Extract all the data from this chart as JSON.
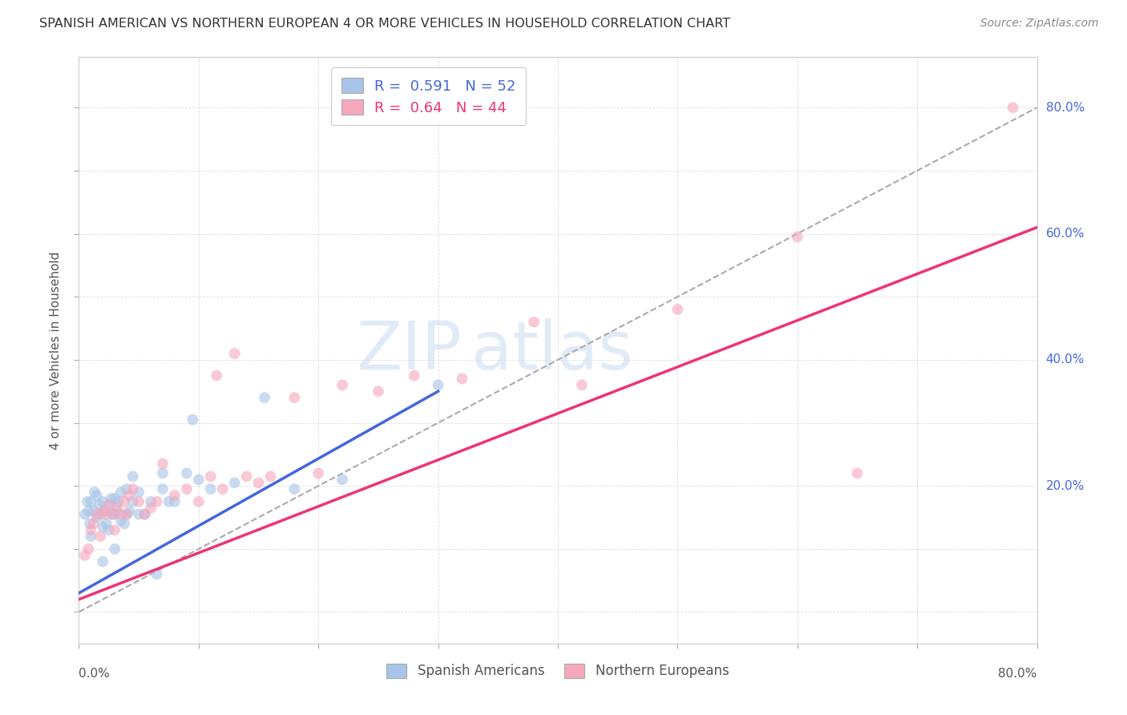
{
  "title": "SPANISH AMERICAN VS NORTHERN EUROPEAN 4 OR MORE VEHICLES IN HOUSEHOLD CORRELATION CHART",
  "source": "Source: ZipAtlas.com",
  "ylabel": "4 or more Vehicles in Household",
  "blue_color": "#a8c4e8",
  "pink_color": "#f5a8bc",
  "blue_line_color": "#4466dd",
  "pink_line_color": "#ee3377",
  "dash_color": "#aaaaaa",
  "right_label_color": "#4466dd",
  "dot_size": 100,
  "dot_alpha": 0.6,
  "xlim": [
    0.0,
    0.8
  ],
  "ylim": [
    -0.05,
    0.88
  ],
  "blue_R": 0.591,
  "blue_N": 52,
  "pink_R": 0.64,
  "pink_N": 44,
  "blue_scatter_x": [
    0.005,
    0.007,
    0.008,
    0.009,
    0.01,
    0.01,
    0.012,
    0.013,
    0.015,
    0.015,
    0.017,
    0.018,
    0.02,
    0.02,
    0.02,
    0.022,
    0.023,
    0.025,
    0.025,
    0.027,
    0.028,
    0.03,
    0.03,
    0.03,
    0.032,
    0.033,
    0.035,
    0.035,
    0.038,
    0.04,
    0.04,
    0.042,
    0.045,
    0.045,
    0.05,
    0.05,
    0.055,
    0.06,
    0.065,
    0.07,
    0.07,
    0.075,
    0.08,
    0.09,
    0.095,
    0.1,
    0.11,
    0.13,
    0.155,
    0.18,
    0.22,
    0.3
  ],
  "blue_scatter_y": [
    0.155,
    0.175,
    0.16,
    0.14,
    0.12,
    0.175,
    0.16,
    0.19,
    0.15,
    0.185,
    0.17,
    0.155,
    0.08,
    0.135,
    0.175,
    0.16,
    0.14,
    0.13,
    0.17,
    0.18,
    0.155,
    0.1,
    0.155,
    0.18,
    0.16,
    0.175,
    0.145,
    0.19,
    0.14,
    0.155,
    0.195,
    0.16,
    0.175,
    0.215,
    0.155,
    0.19,
    0.155,
    0.175,
    0.06,
    0.195,
    0.22,
    0.175,
    0.175,
    0.22,
    0.305,
    0.21,
    0.195,
    0.205,
    0.34,
    0.195,
    0.21,
    0.36
  ],
  "pink_scatter_x": [
    0.005,
    0.008,
    0.01,
    0.012,
    0.015,
    0.018,
    0.02,
    0.022,
    0.025,
    0.028,
    0.03,
    0.032,
    0.035,
    0.038,
    0.04,
    0.042,
    0.045,
    0.05,
    0.055,
    0.06,
    0.065,
    0.07,
    0.08,
    0.09,
    0.1,
    0.11,
    0.115,
    0.12,
    0.13,
    0.14,
    0.15,
    0.16,
    0.18,
    0.2,
    0.22,
    0.25,
    0.28,
    0.32,
    0.38,
    0.42,
    0.5,
    0.6,
    0.65,
    0.78
  ],
  "pink_scatter_y": [
    0.09,
    0.1,
    0.13,
    0.14,
    0.155,
    0.12,
    0.16,
    0.155,
    0.17,
    0.155,
    0.13,
    0.165,
    0.155,
    0.175,
    0.155,
    0.185,
    0.195,
    0.175,
    0.155,
    0.165,
    0.175,
    0.235,
    0.185,
    0.195,
    0.175,
    0.215,
    0.375,
    0.195,
    0.41,
    0.215,
    0.205,
    0.215,
    0.34,
    0.22,
    0.36,
    0.35,
    0.375,
    0.37,
    0.46,
    0.36,
    0.48,
    0.595,
    0.22,
    0.8
  ],
  "blue_line_x": [
    0.0,
    0.3
  ],
  "blue_line_y": [
    0.03,
    0.35
  ],
  "pink_line_x": [
    0.0,
    0.8
  ],
  "pink_line_y": [
    0.02,
    0.61
  ],
  "dash_line_x": [
    0.0,
    0.8
  ],
  "dash_line_y": [
    0.0,
    0.8
  ],
  "right_ytick_positions": [
    0.2,
    0.4,
    0.6,
    0.8
  ],
  "right_ytick_labels": [
    "20.0%",
    "40.0%",
    "60.0%",
    "80.0%"
  ],
  "xtick_positions": [
    0.0,
    0.1,
    0.2,
    0.3,
    0.4,
    0.5,
    0.6,
    0.7,
    0.8
  ],
  "ytick_positions": [
    0.0,
    0.1,
    0.2,
    0.3,
    0.4,
    0.5,
    0.6,
    0.7,
    0.8
  ],
  "grid_color": "#dddddd",
  "spine_color": "#cccccc",
  "watermark_zip_color": "#c5d8f0",
  "watermark_atlas_color": "#c5d8f0",
  "watermark_alpha": 0.5
}
